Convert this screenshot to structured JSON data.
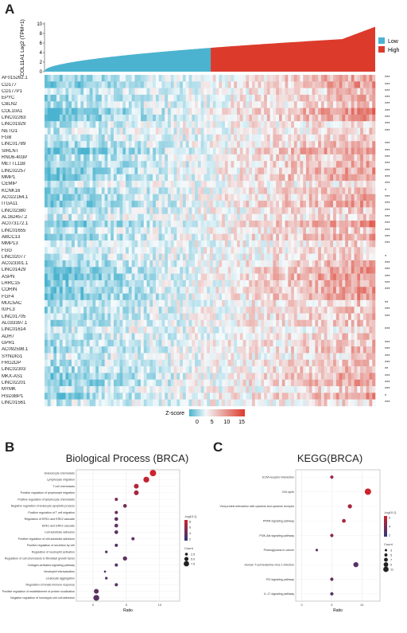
{
  "panels": [
    "A",
    "B",
    "C"
  ],
  "chart_data": [
    {
      "type": "area",
      "panel": "A",
      "ylabel": "COL11A1 Log2 (TPM+1)",
      "ylim": [
        0,
        10
      ],
      "yticks": [
        "0",
        "2",
        "4",
        "6",
        "8",
        "10"
      ],
      "groups": [
        {
          "name": "Low",
          "color": "#4bb3cf"
        },
        {
          "name": "High",
          "color": "#dc3b2c"
        }
      ],
      "low_fraction": 0.5,
      "legend_position": "right"
    },
    {
      "type": "heatmap",
      "panel": "A",
      "genes": [
        "AF015262.1",
        "CD177",
        "CD177P1",
        "EPYC",
        "CBLN2",
        "COL10A1",
        "LINC02263",
        "LINC01929",
        "NETO1",
        "FGB",
        "LINC01789",
        "SIRLNT",
        "RNU6-403P",
        "METTL11B",
        "LINC02257",
        "MMP1",
        "CEMIP",
        "KCNK16",
        "AC022164.1",
        "ITGA11",
        "LINC02380",
        "AL162457.2",
        "AC073172.1",
        "LINC01655",
        "ABCC13",
        "MMP13",
        "FGG",
        "LINC02077",
        "AC023301.1",
        "LINC01429",
        "ASPN",
        "LRRC15",
        "CORIN",
        "FGF4",
        "MUC5AC",
        "IGFL3",
        "LINC01705",
        "AL033397.1",
        "LINC01614",
        "ADH7",
        "GPR1",
        "AC092598.1",
        "SYNDIG1",
        "FRG2DP",
        "LINC02303",
        "MKX-AS1",
        "LINC02201",
        "MYMK",
        "HSD3BP1",
        "LINC01561"
      ],
      "significance": [
        "***",
        "***",
        "***",
        "***",
        "***",
        "***",
        "***",
        "***",
        "***",
        "",
        "***",
        "***",
        "***",
        "***",
        "***",
        "***",
        "***",
        "*",
        "***",
        "***",
        "***",
        "***",
        "***",
        "***",
        "***",
        "***",
        "",
        "*",
        "***",
        "***",
        "***",
        "***",
        "***",
        "",
        "**",
        "***",
        "***",
        "",
        "***",
        "",
        "***",
        "***",
        "***",
        "***",
        "**",
        "***",
        "***",
        "***",
        "*",
        "***"
      ],
      "colorbar": {
        "label": "Z-score",
        "ticks": [
          "0",
          "5",
          "10",
          "15"
        ],
        "low_color": "#4bb3cf",
        "high_color": "#dc3b2c"
      }
    },
    {
      "type": "scatter",
      "panel": "B",
      "title": "Biological Process (BRCA)",
      "xlabel": "Ratio",
      "xticks": [
        "0",
        "5",
        "10"
      ],
      "xlim": [
        -2.5,
        13
      ],
      "legend_color_title": "-log10 Q",
      "legend_color_ticks": [
        "8",
        "6",
        "4",
        "2"
      ],
      "legend_size_title": "Count",
      "legend_size_ticks": [
        "2.5",
        "5.0",
        "7.5"
      ],
      "points": [
        {
          "term": "Granulocyte chemotaxis",
          "x": 9.0,
          "q": 8.0,
          "count": 9
        },
        {
          "term": "Lymphocyte migration",
          "x": 8.0,
          "q": 7.5,
          "count": 8
        },
        {
          "term": "T cell chemotaxis",
          "x": 6.5,
          "q": 6.5,
          "count": 6
        },
        {
          "term": "Positive regulation of lymphocyte migration",
          "x": 6.5,
          "q": 6.0,
          "count": 6
        },
        {
          "term": "Positive regulation of lymphocyte chemotaxis",
          "x": 3.5,
          "q": 4.0,
          "count": 3
        },
        {
          "term": "Negative regulation of leukocyte apoptotic process",
          "x": 4.8,
          "q": 3.5,
          "count": 4
        },
        {
          "term": "Positive regulation of T cell migration",
          "x": 3.5,
          "q": 3.0,
          "count": 3
        },
        {
          "term": "Regulation of ERK1 and ERK2 cascade",
          "x": 3.5,
          "q": 2.5,
          "count": 4
        },
        {
          "term": "ERK1 and ERK2 cascade",
          "x": 3.5,
          "q": 2.5,
          "count": 4
        },
        {
          "term": "Cell-substrate adhesion",
          "x": 3.5,
          "q": 2.2,
          "count": 4
        },
        {
          "term": "Positive regulation of cell-substrate adhesion",
          "x": 6.0,
          "q": 2.5,
          "count": 3
        },
        {
          "term": "Positive regulation of secretion by cell",
          "x": 3.5,
          "q": 2.0,
          "count": 3
        },
        {
          "term": "Regulation of neutrophil activation",
          "x": 2.0,
          "q": 2.0,
          "count": 2
        },
        {
          "term": "Regulation of cell chemotaxis to fibroblast growth factor",
          "x": 4.8,
          "q": 2.5,
          "count": 5
        },
        {
          "term": "Collagen-activated signaling pathway",
          "x": 3.5,
          "q": 2.0,
          "count": 3
        },
        {
          "term": "Neutrophil extravasation",
          "x": 1.8,
          "q": 2.0,
          "count": 1
        },
        {
          "term": "Leukocyte aggregation",
          "x": 2.0,
          "q": 2.0,
          "count": 2
        },
        {
          "term": "Regulation of innate immune response",
          "x": 3.5,
          "q": 2.0,
          "count": 3
        },
        {
          "term": "Positive regulation of establishment of protein localization",
          "x": 0.5,
          "q": 2.5,
          "count": 6
        },
        {
          "term": "Negative regulation of homotypic cell-cell adhesion",
          "x": 0.5,
          "q": 2.0,
          "count": 8
        }
      ]
    },
    {
      "type": "scatter",
      "panel": "C",
      "title": "KEGG(BRCA)",
      "xlabel": "Ratio",
      "xticks": [
        "0",
        "5",
        "10"
      ],
      "xlim": [
        -1,
        13
      ],
      "legend_color_title": "-log10 Q",
      "legend_color_ticks": [
        "6",
        "4",
        "2"
      ],
      "legend_size_title": "Count",
      "legend_size_ticks": [
        "3",
        "5",
        "7",
        "9",
        "11"
      ],
      "points": [
        {
          "term": "ECM-receptor interaction",
          "x": 5.0,
          "q": 4.0,
          "count": 4
        },
        {
          "term": "Cell cycle",
          "x": 11.0,
          "q": 6.0,
          "count": 11
        },
        {
          "term": "Viral protein interaction with cytokine and cytokine receptor",
          "x": 8.0,
          "q": 4.5,
          "count": 6
        },
        {
          "term": "PPAR signaling pathway",
          "x": 7.0,
          "q": 4.5,
          "count": 5
        },
        {
          "term": "PI3K-Akt signaling pathway",
          "x": 5.0,
          "q": 3.5,
          "count": 4
        },
        {
          "term": "Proteoglycans in cancer",
          "x": 2.5,
          "q": 2.0,
          "count": 2
        },
        {
          "term": "Human T-cell leukemia virus 1 infection",
          "x": 9.0,
          "q": 1.5,
          "count": 8
        },
        {
          "term": "PI3 signaling pathway",
          "x": 5.0,
          "q": 2.0,
          "count": 4
        },
        {
          "term": "IL-17 signaling pathway",
          "x": 5.0,
          "q": 1.5,
          "count": 4
        }
      ]
    }
  ]
}
